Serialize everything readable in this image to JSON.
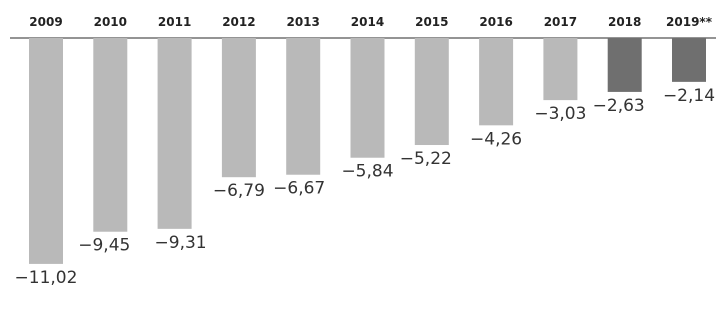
{
  "chart_data": {
    "type": "bar",
    "categories": [
      "2009",
      "2010",
      "2011",
      "2012",
      "2013",
      "2014",
      "2015",
      "2016",
      "2017",
      "2018",
      "2019**"
    ],
    "values": [
      -11.02,
      -9.45,
      -9.31,
      -6.79,
      -6.67,
      -5.84,
      -5.22,
      -4.26,
      -3.03,
      -2.63,
      -2.14
    ],
    "value_labels": [
      "−11,02",
      "−9,45",
      "−9,31",
      "−6,79",
      "−6,67",
      "−5,84",
      "−5,22",
      "−4,26",
      "−3,03",
      "−2,63",
      "−2,14"
    ],
    "title": "",
    "xlabel": "",
    "ylabel": "",
    "ylim": [
      -11.5,
      0
    ],
    "grid": false,
    "legend": "none",
    "colors": {
      "default_bar": "#b9b9b9",
      "highlight_bar": "#6f6f6f",
      "axis_line": "#555555",
      "highlight_categories": [
        "2018",
        "2019**"
      ]
    }
  }
}
